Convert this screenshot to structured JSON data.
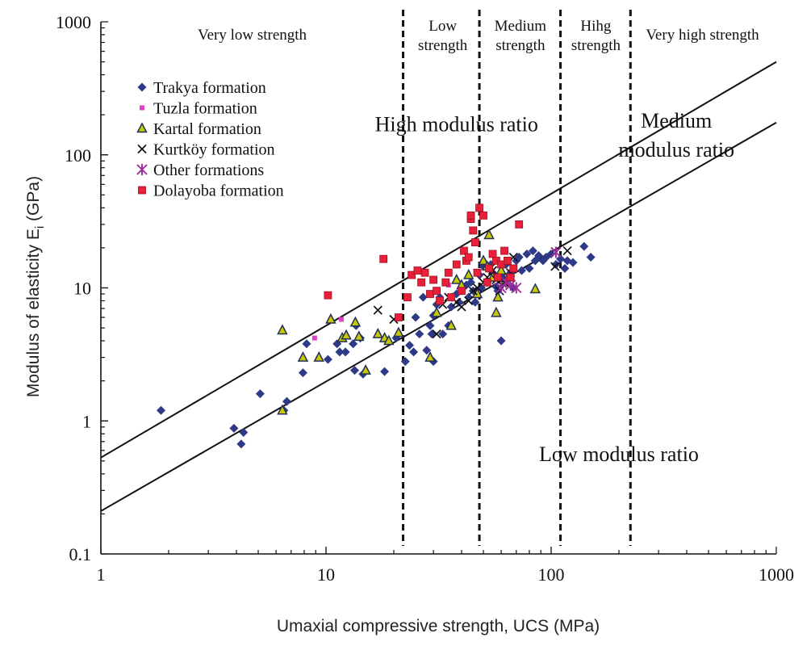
{
  "chart_data": {
    "type": "scatter",
    "title": "",
    "xlabel": "Umaxial compressive strength, UCS (MPa)",
    "ylabel_main": "Modulus of elasticity E",
    "ylabel_sub": "i",
    "ylabel_unit": " (GPa)",
    "x_scale": "log",
    "y_scale": "log",
    "xlim": [
      1,
      1000
    ],
    "ylim": [
      0.1,
      1000
    ],
    "x_ticks": [
      1,
      10,
      100,
      1000
    ],
    "x_tick_labels": [
      "1",
      "10",
      "100",
      "1000"
    ],
    "y_ticks": [
      0.1,
      1,
      10,
      100,
      1000
    ],
    "y_tick_labels": [
      "0.1",
      "1",
      "10",
      "100",
      "1000"
    ],
    "grid": false,
    "legend_position": "top-left",
    "strength_boundaries": [
      22,
      48,
      110,
      225
    ],
    "strength_zones": [
      {
        "lines": [
          "Very low strength"
        ],
        "x_center": 4.7
      },
      {
        "lines": [
          "Low",
          "strength"
        ],
        "x_center": 33
      },
      {
        "lines": [
          "Medium",
          "strength"
        ],
        "x_center": 73
      },
      {
        "lines": [
          "Hihg",
          "strength"
        ],
        "x_center": 158
      },
      {
        "lines": [
          "Very high strength"
        ],
        "x_center": 470
      }
    ],
    "modulus_ratio_lines": [
      {
        "x": [
          1,
          1000
        ],
        "y": [
          0.53,
          500
        ]
      },
      {
        "x": [
          1,
          1000
        ],
        "y": [
          0.21,
          175
        ]
      }
    ],
    "region_labels": [
      {
        "lines": [
          "High modulus ratio"
        ],
        "x": 38,
        "y": 150
      },
      {
        "lines": [
          "Medium",
          "modulus ratio"
        ],
        "x": 360,
        "y": 160
      },
      {
        "lines": [
          "Low modulus ratio"
        ],
        "x": 200,
        "y": 0.5
      }
    ],
    "series": [
      {
        "name": "Trakya formation",
        "marker": "diamond",
        "color": "#2e3a87",
        "points": [
          [
            1.85,
            1.2
          ],
          [
            3.9,
            0.88
          ],
          [
            4.2,
            0.67
          ],
          [
            4.3,
            0.82
          ],
          [
            5.1,
            1.6
          ],
          [
            6.7,
            1.4
          ],
          [
            6.5,
            1.2
          ],
          [
            7.9,
            2.3
          ],
          [
            8.2,
            3.8
          ],
          [
            10.2,
            2.9
          ],
          [
            11.2,
            3.8
          ],
          [
            11.5,
            3.3
          ],
          [
            12.2,
            3.3
          ],
          [
            13.2,
            3.8
          ],
          [
            13.4,
            2.4
          ],
          [
            13.6,
            5.2
          ],
          [
            14.6,
            2.25
          ],
          [
            14.2,
            4.2
          ],
          [
            18.2,
            2.35
          ],
          [
            20.5,
            4.2
          ],
          [
            22.5,
            2.8
          ],
          [
            23.5,
            3.7
          ],
          [
            24.5,
            3.3
          ],
          [
            25,
            6
          ],
          [
            26,
            4.5
          ],
          [
            27,
            8.5
          ],
          [
            28,
            3.4
          ],
          [
            29,
            5.2
          ],
          [
            29.5,
            4.5
          ],
          [
            30,
            6.2
          ],
          [
            31,
            7.5
          ],
          [
            32,
            8.5
          ],
          [
            33,
            4.5
          ],
          [
            35,
            5.2
          ],
          [
            36,
            7.2
          ],
          [
            38,
            9
          ],
          [
            39,
            7.8
          ],
          [
            40,
            9.5
          ],
          [
            42,
            10.5
          ],
          [
            43,
            8.5
          ],
          [
            44,
            11
          ],
          [
            45,
            9.5
          ],
          [
            46,
            7.8
          ],
          [
            48,
            12.5
          ],
          [
            49,
            10
          ],
          [
            50,
            14.5
          ],
          [
            52,
            11
          ],
          [
            54,
            15
          ],
          [
            55,
            13
          ],
          [
            57,
            10.2
          ],
          [
            58,
            9.5
          ],
          [
            60,
            4
          ],
          [
            61,
            12
          ],
          [
            63,
            15
          ],
          [
            64,
            11.5
          ],
          [
            66,
            13
          ],
          [
            68,
            10
          ],
          [
            70,
            16
          ],
          [
            72,
            17
          ],
          [
            74,
            13.5
          ],
          [
            78,
            18
          ],
          [
            80,
            14
          ],
          [
            83,
            19
          ],
          [
            85,
            16
          ],
          [
            88,
            17.5
          ],
          [
            92,
            16
          ],
          [
            95,
            17
          ],
          [
            100,
            18
          ],
          [
            105,
            15
          ],
          [
            110,
            16.5
          ],
          [
            115,
            14
          ],
          [
            118,
            16
          ],
          [
            125,
            15.5
          ],
          [
            140,
            20.5
          ],
          [
            150,
            17
          ],
          [
            30,
            2.8
          ]
        ]
      },
      {
        "name": "Tuzla formation",
        "marker": "small-square",
        "color": "#e040c8",
        "points": [
          [
            8.9,
            4.2
          ],
          [
            11.7,
            5.8
          ],
          [
            35,
            10.5
          ]
        ]
      },
      {
        "name": "Kartal formation",
        "marker": "triangle",
        "color": "#c8c800",
        "points": [
          [
            6.4,
            4.8
          ],
          [
            6.4,
            1.2
          ],
          [
            7.9,
            3
          ],
          [
            9.3,
            3
          ],
          [
            10.5,
            5.8
          ],
          [
            11.8,
            4.2
          ],
          [
            12.3,
            4.4
          ],
          [
            13.5,
            5.5
          ],
          [
            14,
            4.3
          ],
          [
            15,
            2.4
          ],
          [
            17,
            4.5
          ],
          [
            18.2,
            4.2
          ],
          [
            19,
            4
          ],
          [
            21,
            4.6
          ],
          [
            29,
            3
          ],
          [
            31,
            6.5
          ],
          [
            36,
            5.2
          ],
          [
            38,
            11.5
          ],
          [
            40,
            10.5
          ],
          [
            43,
            12.5
          ],
          [
            47,
            9
          ],
          [
            50,
            16
          ],
          [
            52,
            14.5
          ],
          [
            53,
            25
          ],
          [
            55,
            12
          ],
          [
            57,
            6.5
          ],
          [
            58,
            8.5
          ],
          [
            60,
            13.5
          ],
          [
            62,
            11
          ],
          [
            85,
            9.8
          ]
        ]
      },
      {
        "name": "Kurtköy formation",
        "marker": "x",
        "color": "#111111",
        "points": [
          [
            17,
            6.8
          ],
          [
            20,
            5.8
          ],
          [
            31,
            4.5
          ],
          [
            33,
            7.5
          ],
          [
            35,
            8.5
          ],
          [
            38,
            7.8
          ],
          [
            40,
            7.2
          ],
          [
            43,
            8
          ],
          [
            45,
            9.5
          ],
          [
            47,
            10
          ],
          [
            50,
            11
          ],
          [
            52,
            12
          ],
          [
            55,
            13.5
          ],
          [
            57,
            11.5
          ],
          [
            59,
            9.5
          ],
          [
            62,
            11
          ],
          [
            65,
            12
          ],
          [
            68,
            17
          ],
          [
            104,
            14.5
          ],
          [
            118,
            19
          ],
          [
            66,
            13
          ]
        ]
      },
      {
        "name": "Other formations",
        "marker": "asterisk",
        "color": "#9b2a9b",
        "points": [
          [
            60,
            10
          ],
          [
            63,
            11
          ],
          [
            66,
            10.5
          ],
          [
            70,
            10
          ],
          [
            105,
            18.5
          ]
        ]
      },
      {
        "name": "Dolayoba formation",
        "marker": "square",
        "color": "#e8203a",
        "points": [
          [
            10.2,
            8.8
          ],
          [
            18,
            16.5
          ],
          [
            21,
            6
          ],
          [
            23,
            8.5
          ],
          [
            24,
            12.5
          ],
          [
            25.5,
            13.5
          ],
          [
            26.5,
            11
          ],
          [
            27.5,
            13
          ],
          [
            29,
            9
          ],
          [
            30,
            11.5
          ],
          [
            31,
            9.5
          ],
          [
            32,
            8
          ],
          [
            34,
            11
          ],
          [
            35,
            13
          ],
          [
            36,
            8.5
          ],
          [
            38,
            15
          ],
          [
            40,
            9.5
          ],
          [
            41,
            19
          ],
          [
            42,
            16
          ],
          [
            43,
            17
          ],
          [
            44,
            33
          ],
          [
            45,
            27
          ],
          [
            46,
            22
          ],
          [
            47,
            13
          ],
          [
            48,
            40
          ],
          [
            50,
            35
          ],
          [
            52,
            11
          ],
          [
            53,
            14
          ],
          [
            55,
            18
          ],
          [
            57,
            16
          ],
          [
            58,
            12
          ],
          [
            60,
            15
          ],
          [
            62,
            19
          ],
          [
            64,
            16
          ],
          [
            66,
            12
          ],
          [
            68,
            14
          ],
          [
            72,
            30
          ],
          [
            44,
            35
          ]
        ]
      }
    ]
  }
}
